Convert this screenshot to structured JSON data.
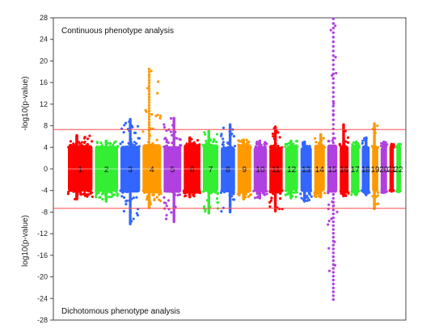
{
  "chart_data": {
    "type": "scatter",
    "subtype": "miami-plot",
    "panel_top_label": "Continuous phenotype analysis",
    "panel_bottom_label": "Dichotomous phenotype analysis",
    "ylabel_top": "-log10(p-value)",
    "ylabel_bottom": "log10(p-value)",
    "ylim": [
      -28,
      28
    ],
    "y_ticks": [
      28,
      24,
      20,
      16,
      12,
      8,
      4,
      0,
      -4,
      -8,
      -12,
      -16,
      -20,
      -24,
      -28
    ],
    "significance_lines": [
      7.3,
      -7.3
    ],
    "significance_color": "#ff4d4d",
    "background_band": [
      -4,
      4
    ],
    "chromosomes": [
      {
        "label": "1",
        "color": "#ff0000",
        "size": 10,
        "max_up": 6.2,
        "max_down": -5.6
      },
      {
        "label": "2",
        "color": "#33ee33",
        "size": 9.4,
        "max_up": 5.2,
        "max_down": -6.0
      },
      {
        "label": "3",
        "color": "#3366ff",
        "size": 8.0,
        "max_up": 9.2,
        "max_down": -10.2
      },
      {
        "label": "4",
        "color": "#ff9900",
        "size": 7.6,
        "max_up": 18.5,
        "max_down": -7.2
      },
      {
        "label": "5",
        "color": "#b040e0",
        "size": 7.2,
        "max_up": 9.4,
        "max_down": -9.8
      },
      {
        "label": "6",
        "color": "#ff0000",
        "size": 6.8,
        "max_up": 5.8,
        "max_down": -5.2
      },
      {
        "label": "7",
        "color": "#33ee33",
        "size": 6.3,
        "max_up": 7.0,
        "max_down": -8.2
      },
      {
        "label": "8",
        "color": "#3366ff",
        "size": 5.8,
        "max_up": 8.2,
        "max_down": -8.0
      },
      {
        "label": "9",
        "color": "#ff9900",
        "size": 5.6,
        "max_up": 5.4,
        "max_down": -5.6
      },
      {
        "label": "10",
        "color": "#b040e0",
        "size": 5.4,
        "max_up": 5.2,
        "max_down": -5.4
      },
      {
        "label": "11",
        "color": "#ff0000",
        "size": 5.4,
        "max_up": 7.8,
        "max_down": -7.8
      },
      {
        "label": "12",
        "color": "#33ee33",
        "size": 5.3,
        "max_up": 5.2,
        "max_down": -5.4
      },
      {
        "label": "13",
        "color": "#3366ff",
        "size": 4.6,
        "max_up": 5.0,
        "max_down": -6.0
      },
      {
        "label": "14",
        "color": "#ff9900",
        "size": 4.3,
        "max_up": 6.4,
        "max_down": -5.2
      },
      {
        "label": "15",
        "color": "#b040e0",
        "size": 4.1,
        "max_up": 27.8,
        "max_down": -24.2
      },
      {
        "label": "16",
        "color": "#ff0000",
        "size": 3.6,
        "max_up": 8.2,
        "max_down": -5.0
      },
      {
        "label": "17",
        "color": "#33ee33",
        "size": 3.4,
        "max_up": 5.0,
        "max_down": -4.8
      },
      {
        "label": "18",
        "color": "#3366ff",
        "size": 3.2,
        "max_up": 5.8,
        "max_down": -4.8
      },
      {
        "label": "19",
        "color": "#ff9900",
        "size": 2.5,
        "max_up": 8.4,
        "max_down": -7.4
      },
      {
        "label": "20",
        "color": "#b040e0",
        "size": 2.6,
        "max_up": 5.0,
        "max_down": -4.4
      },
      {
        "label": "21",
        "color": "#ff0000",
        "size": 1.8,
        "max_up": 4.6,
        "max_down": -4.0
      },
      {
        "label": "22",
        "color": "#33ee33",
        "size": 1.9,
        "max_up": 4.6,
        "max_down": -4.2
      }
    ]
  }
}
